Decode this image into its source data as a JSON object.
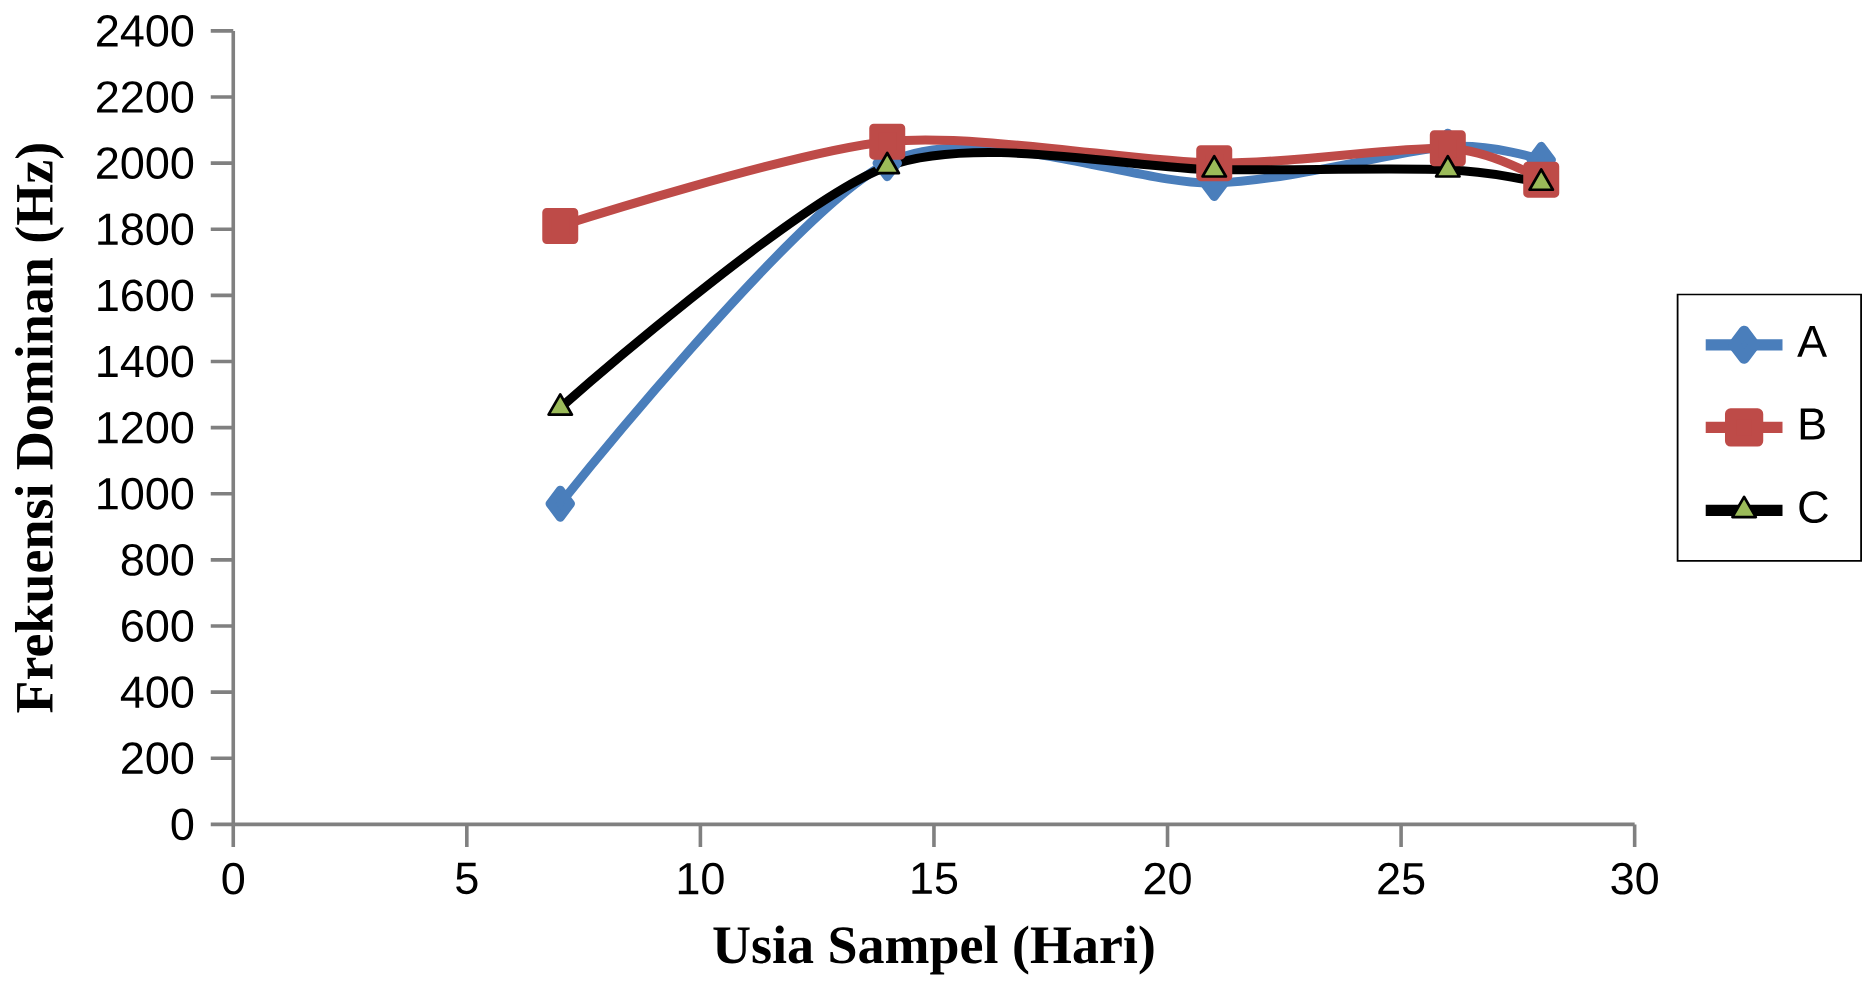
{
  "chart_data": {
    "type": "line",
    "xlabel": "Usia  Sampel (Hari)",
    "ylabel": "Frekuensi Dominan (Hz)",
    "xlim": [
      0,
      30
    ],
    "xticks": [
      0,
      5,
      10,
      15,
      20,
      25,
      30
    ],
    "ylim": [
      0,
      2400
    ],
    "yticks": [
      0,
      200,
      400,
      600,
      800,
      1000,
      1200,
      1400,
      1600,
      1800,
      2000,
      2200,
      2400
    ],
    "grid": false,
    "legend": "right",
    "line_style": "solid",
    "x": [
      7,
      14,
      21,
      26,
      28
    ],
    "series": [
      {
        "name": "A",
        "color": "#4a7ebb",
        "marker": "diamond",
        "values": [
          970,
          2000,
          1940,
          2050,
          2010
        ]
      },
      {
        "name": "B",
        "color": "#be4b48",
        "marker": "square",
        "values": [
          1810,
          2065,
          2000,
          2045,
          1950
        ]
      },
      {
        "name": "C",
        "color": "#000000",
        "marker": "triangle",
        "colors": [
          "#9bbb59",
          "#9bbb59",
          "#9bbb59",
          "#9bbb59",
          "#9bbb59"
        ],
        "values": [
          1260,
          1990,
          1980,
          1980,
          1940
        ]
      }
    ]
  }
}
